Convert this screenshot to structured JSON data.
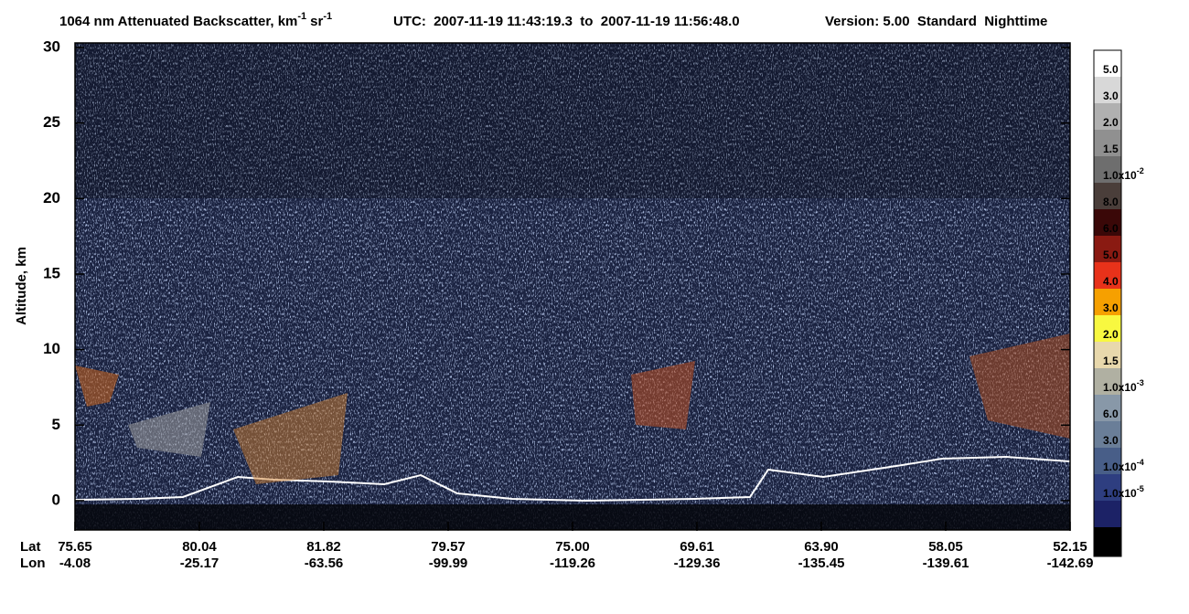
{
  "chart_data": {
    "type": "curtain",
    "title": {
      "main": "1064 nm Attenuated Backscatter, km",
      "exp1": "-1",
      "unit2": "sr",
      "exp2": "-1"
    },
    "utc": "UTC:  2007-11-19 11:43:19.3  to  2007-11-19 11:56:48.0",
    "version": "Version: 5.00  Standard  Nighttime",
    "ylabel": "Altitude, km",
    "ylim": [
      -2,
      30
    ],
    "yticks": [
      0,
      5,
      10,
      15,
      20,
      25,
      30
    ],
    "x_rows": [
      "Lat",
      "Lon"
    ],
    "lat": [
      "75.65",
      "80.04",
      "81.82",
      "79.57",
      "75.00",
      "69.61",
      "63.90",
      "58.05",
      "52.15"
    ],
    "lon": [
      "-4.08",
      "-25.17",
      "-63.56",
      "-99.99",
      "-119.26",
      "-129.36",
      "-135.45",
      "-139.61",
      "-142.69"
    ],
    "colorbar": {
      "colors": [
        "#ffffff",
        "#d8d8d8",
        "#b0b0b0",
        "#909090",
        "#6e6e6e",
        "#4a3e3a",
        "#3a0808",
        "#8a1a12",
        "#e8321a",
        "#f6a000",
        "#f8f840",
        "#e8d8ac",
        "#b0b0a2",
        "#8898a8",
        "#6a7e98",
        "#485e88",
        "#2e3e80",
        "#1c2266",
        "#000000"
      ],
      "labels": [
        {
          "text": "5.0"
        },
        {
          "text": "3.0"
        },
        {
          "text": "2.0"
        },
        {
          "text": "1.5"
        },
        {
          "text": "1.0x10",
          "sup": "-2"
        },
        {
          "text": "8.0"
        },
        {
          "text": "6.0"
        },
        {
          "text": "5.0"
        },
        {
          "text": "4.0"
        },
        {
          "text": "3.0"
        },
        {
          "text": "2.0"
        },
        {
          "text": "1.5"
        },
        {
          "text": "1.0x10",
          "sup": "-3"
        },
        {
          "text": "6.0"
        },
        {
          "text": "3.0"
        },
        {
          "text": "1.0x10",
          "sup": "-4"
        },
        {
          "text": "1.0x10",
          "sup": "-5"
        }
      ]
    }
  }
}
